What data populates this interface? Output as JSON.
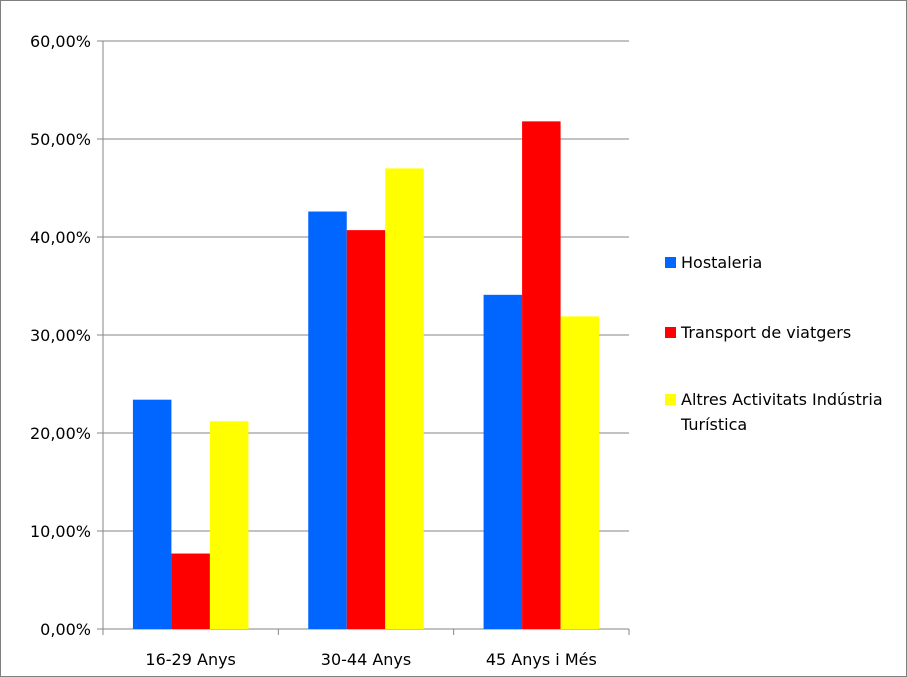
{
  "chart_data": {
    "type": "bar",
    "title": "",
    "xlabel": "",
    "ylabel": "",
    "categories": [
      "16-29 Anys",
      "30-44 Anys",
      "45 Anys i Més"
    ],
    "ylim": [
      0,
      60
    ],
    "yticks": [
      0,
      10,
      20,
      30,
      40,
      50,
      60
    ],
    "ytick_labels": [
      "0,00%",
      "10,00%",
      "20,00%",
      "30,00%",
      "40,00%",
      "50,00%",
      "60,00%"
    ],
    "grid": true,
    "legend_position": "right",
    "series": [
      {
        "name": "Hostaleria",
        "color": "#0066ff",
        "values": [
          23.4,
          42.6,
          34.1
        ]
      },
      {
        "name": "Transport de viatgers",
        "color": "#ff0000",
        "values": [
          7.7,
          40.7,
          51.8
        ]
      },
      {
        "name": "Altres Activitats Indústria Turística",
        "color": "#ffff00",
        "values": [
          21.2,
          47.0,
          31.9
        ]
      }
    ],
    "legend_lines": [
      [
        "Hostaleria"
      ],
      [
        "Transport de viatgers"
      ],
      [
        "Altres Activitats Indústria",
        "Turística"
      ]
    ]
  }
}
